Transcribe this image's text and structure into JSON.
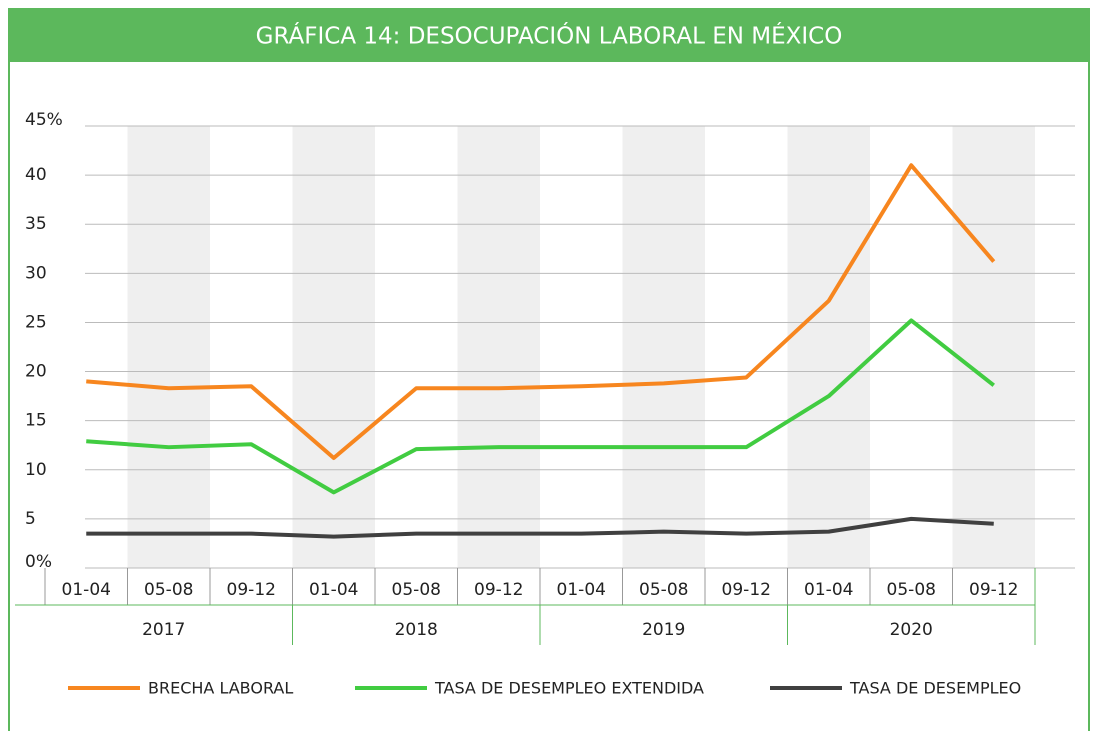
{
  "chart_data": {
    "type": "line",
    "title": "GRÁFICA 14: DESOCUPACIÓN LABORAL EN MÉXICO",
    "categories": [
      "01-04",
      "05-08",
      "09-12",
      "01-04",
      "05-08",
      "09-12",
      "01-04",
      "05-08",
      "09-12",
      "01-04",
      "05-08",
      "09-12"
    ],
    "years": [
      "2017",
      "2018",
      "2019",
      "2020"
    ],
    "series": [
      {
        "name": "BRECHA LABORAL",
        "color": "#f7861f",
        "values": [
          19.0,
          18.3,
          18.5,
          11.2,
          18.3,
          18.3,
          18.5,
          18.8,
          19.4,
          27.2,
          41.0,
          31.2
        ]
      },
      {
        "name": "TASA DE DESEMPLEO EXTENDIDA",
        "color": "#41cc41",
        "values": [
          12.9,
          12.3,
          12.6,
          7.7,
          12.1,
          12.3,
          12.3,
          12.3,
          12.3,
          17.5,
          25.2,
          18.6
        ]
      },
      {
        "name": "TASA DE DESEMPLEO",
        "color": "#404040",
        "values": [
          3.5,
          3.5,
          3.5,
          3.2,
          3.5,
          3.5,
          3.5,
          3.7,
          3.5,
          3.7,
          5.0,
          4.5
        ]
      }
    ],
    "ylim": [
      0,
      45
    ],
    "yticks": [
      {
        "value": 0,
        "label": "0%"
      },
      5,
      10,
      15,
      20,
      25,
      30,
      35,
      40,
      {
        "value": 45,
        "label": "45%"
      }
    ],
    "grid": true
  }
}
